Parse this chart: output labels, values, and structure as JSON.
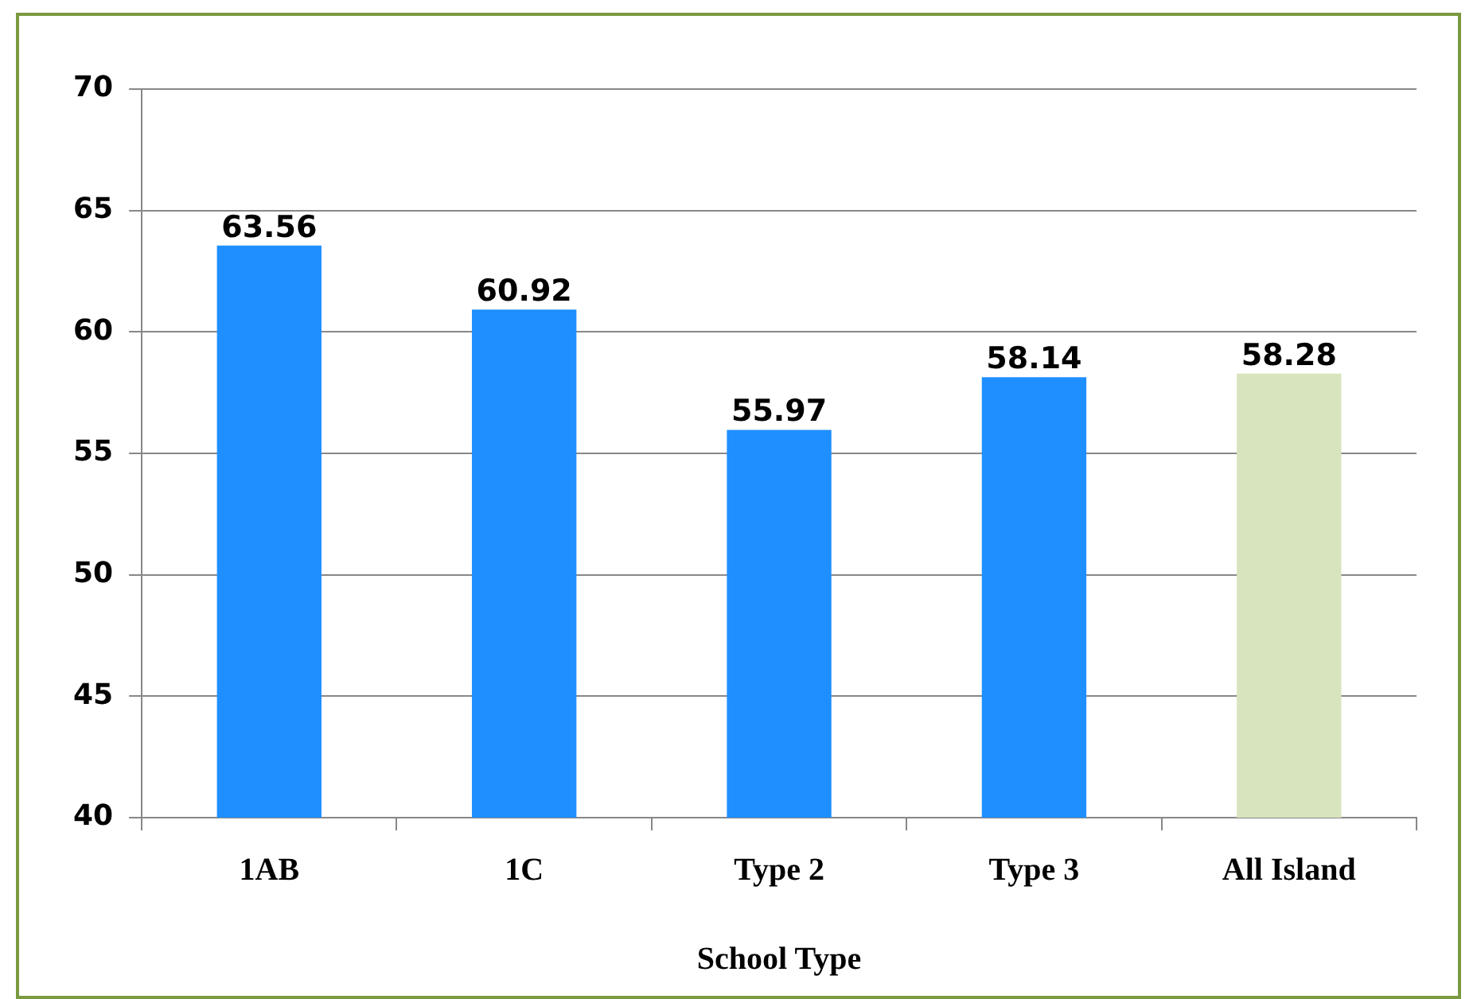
{
  "chart_data": {
    "type": "bar",
    "xlabel": "School Type",
    "categories": [
      "1AB",
      "1C",
      "Type 2",
      "Type 3",
      "All Island"
    ],
    "values": [
      63.56,
      60.92,
      55.97,
      58.14,
      58.28
    ],
    "colors": [
      "#1f8fff",
      "#1f8fff",
      "#1f8fff",
      "#1f8fff",
      "#d7e4bd"
    ],
    "ylim": [
      40,
      70
    ],
    "yticks": [
      40,
      45,
      50,
      55,
      60,
      65,
      70
    ],
    "grid": "y",
    "data_labels": true,
    "legend": false
  }
}
